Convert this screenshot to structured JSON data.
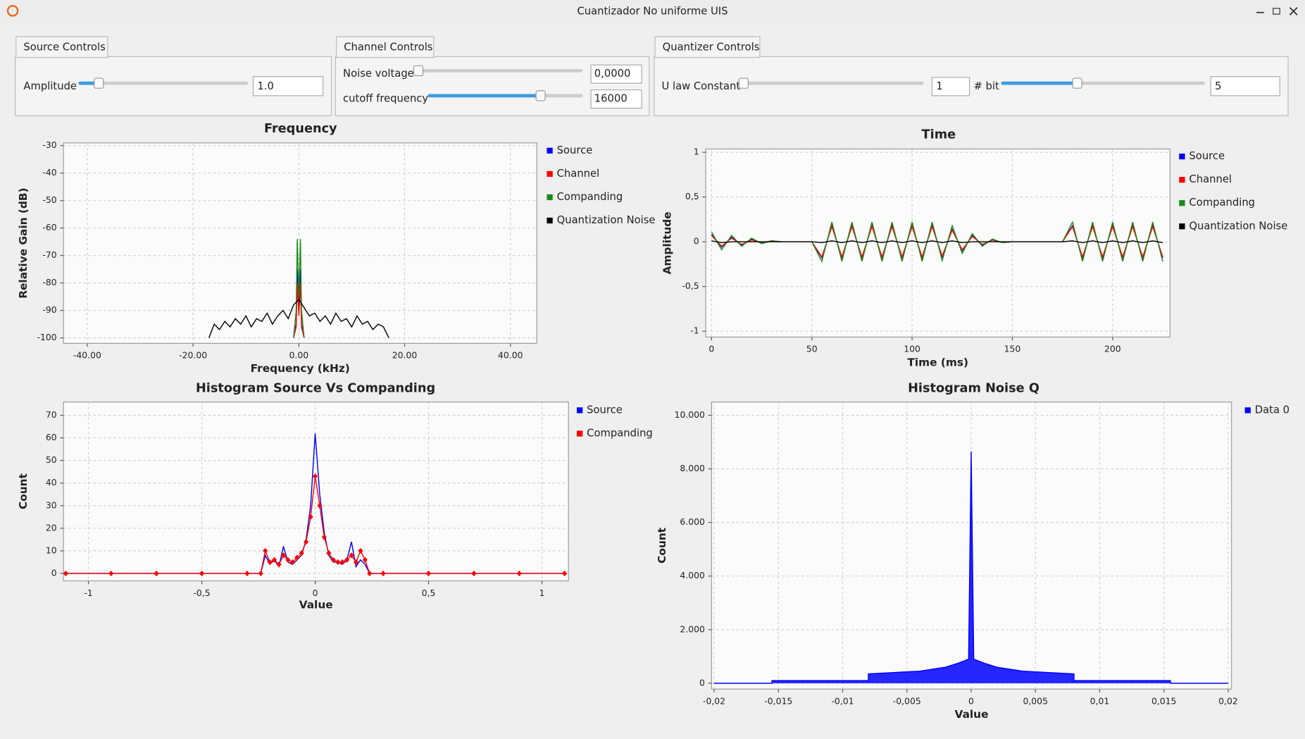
{
  "window": {
    "title": "Cuantizador No uniforme UIS"
  },
  "controls": [
    {
      "tab": "Source Controls",
      "fields": [
        {
          "label": "Amplitude",
          "value": "1.0"
        }
      ]
    },
    {
      "tab": "Channel Controls",
      "fields": [
        {
          "label": "Noise voltage",
          "value": "0,0000"
        },
        {
          "label": "cutoff frequency",
          "value": "16000"
        }
      ]
    },
    {
      "tab": "Quantizer Controls",
      "fields": [
        {
          "label": "U law Constant",
          "value": "1"
        },
        {
          "label": "# bit",
          "value": "5"
        }
      ]
    }
  ],
  "chart_data": [
    {
      "type": "line",
      "title": "Frequency",
      "x_label": "Frequency (kHz)",
      "y_label": "Relative Gain (dB)",
      "xlim": [
        -44.5,
        45
      ],
      "ylim": [
        -102,
        -29
      ],
      "xticks": [
        {
          "value": -40,
          "label": "-40.00"
        },
        {
          "value": -20,
          "label": "-20.00"
        },
        {
          "value": 0,
          "label": "0.00"
        },
        {
          "value": 20,
          "label": "20.00"
        },
        {
          "value": 40,
          "label": "40.00"
        }
      ],
      "yticks": [
        -30,
        -40,
        -50,
        -60,
        -70,
        -80,
        -90,
        -100
      ],
      "grid": true,
      "legend": "right",
      "series": [
        {
          "name": "Source",
          "color": "#0000ff",
          "x": [
            -1,
            -0.5,
            -0.3,
            0,
            0.3,
            0.5,
            1
          ],
          "values": [
            -100,
            -95,
            -75,
            -90,
            -75,
            -95,
            -100
          ]
        },
        {
          "name": "Channel",
          "color": "#ff0000",
          "x": [
            -1,
            -0.5,
            -0.3,
            0,
            0.3,
            0.5,
            1
          ],
          "values": [
            -100,
            -96,
            -80,
            -92,
            -80,
            -96,
            -100
          ]
        },
        {
          "name": "Companding",
          "color": "#1a8a1a",
          "x": [
            -1,
            -0.5,
            -0.3,
            0,
            0.3,
            0.5,
            1
          ],
          "values": [
            -100,
            -90,
            -64,
            -85,
            -64,
            -90,
            -100
          ]
        },
        {
          "name": "Quantization Noise",
          "color": "#000000",
          "x": [
            -17,
            -16,
            -15,
            -14,
            -13,
            -12,
            -11,
            -10,
            -9,
            -8,
            -7,
            -6,
            -5,
            -4,
            -3,
            -2,
            -1,
            0,
            1,
            2,
            3,
            4,
            5,
            6,
            7,
            8,
            9,
            10,
            11,
            12,
            13,
            14,
            15,
            16,
            17
          ],
          "values": [
            -100,
            -95,
            -97,
            -94,
            -96,
            -93,
            -95,
            -92,
            -96,
            -93,
            -94,
            -91,
            -95,
            -92,
            -90,
            -93,
            -88,
            -86,
            -89,
            -92,
            -91,
            -94,
            -92,
            -95,
            -91,
            -94,
            -93,
            -96,
            -92,
            -95,
            -94,
            -97,
            -95,
            -96,
            -100
          ]
        }
      ]
    },
    {
      "type": "line",
      "title": "Time",
      "x_label": "Time (ms)",
      "y_label": "Amplitude",
      "xlim": [
        -2.9,
        228.6
      ],
      "ylim": [
        -1.065,
        1.037
      ],
      "xticks": [
        0,
        50,
        100,
        150,
        200
      ],
      "yticks": [
        1,
        {
          "value": 0.5,
          "label": "0,5"
        },
        0,
        {
          "value": -0.5,
          "label": "-0,5"
        },
        -1
      ],
      "grid": true,
      "legend": "right",
      "x": [
        0,
        5,
        10,
        15,
        20,
        25,
        30,
        35,
        40,
        45,
        50,
        55,
        60,
        65,
        70,
        75,
        80,
        85,
        90,
        95,
        100,
        105,
        110,
        115,
        120,
        125,
        130,
        135,
        140,
        145,
        150,
        155,
        160,
        165,
        170,
        175,
        180,
        185,
        190,
        195,
        200,
        205,
        210,
        215,
        220,
        225
      ],
      "series": [
        {
          "name": "Source",
          "color": "#0000ff",
          "values": [
            0.08,
            -0.06,
            0.05,
            -0.04,
            0.03,
            -0.02,
            0.01,
            0,
            0,
            0,
            0,
            -0.18,
            0.18,
            -0.18,
            0.18,
            -0.18,
            0.18,
            -0.18,
            0.18,
            -0.18,
            0.18,
            -0.18,
            0.18,
            -0.17,
            0.14,
            -0.1,
            0.07,
            -0.04,
            0.02,
            -0.01,
            0,
            0,
            0,
            0,
            0,
            0,
            0.18,
            -0.18,
            0.18,
            -0.18,
            0.18,
            -0.18,
            0.18,
            -0.18,
            0.18,
            -0.18
          ]
        },
        {
          "name": "Channel",
          "color": "#ff0000",
          "values": [
            0.07,
            -0.05,
            0.04,
            -0.03,
            0.02,
            -0.01,
            0.01,
            0,
            0,
            0,
            0,
            -0.17,
            0.17,
            -0.17,
            0.17,
            -0.17,
            0.17,
            -0.17,
            0.17,
            -0.17,
            0.17,
            -0.17,
            0.17,
            -0.16,
            0.13,
            -0.09,
            0.06,
            -0.03,
            0.02,
            -0.01,
            0,
            0,
            0,
            0,
            0,
            0,
            0.17,
            -0.17,
            0.17,
            -0.17,
            0.17,
            -0.17,
            0.17,
            -0.17,
            0.17,
            -0.17
          ]
        },
        {
          "name": "Companding",
          "color": "#1a8a1a",
          "values": [
            0.11,
            -0.09,
            0.07,
            -0.05,
            0.04,
            -0.02,
            0.01,
            0,
            0,
            0,
            0,
            -0.22,
            0.22,
            -0.22,
            0.22,
            -0.22,
            0.22,
            -0.22,
            0.22,
            -0.22,
            0.22,
            -0.22,
            0.22,
            -0.21,
            0.18,
            -0.13,
            0.09,
            -0.05,
            0.03,
            -0.01,
            0,
            0,
            0,
            0,
            0,
            0,
            0.22,
            -0.22,
            0.22,
            -0.22,
            0.22,
            -0.22,
            0.22,
            -0.22,
            0.22,
            -0.22
          ]
        },
        {
          "name": "Quantization Noise",
          "color": "#000000",
          "values": [
            0.01,
            -0.01,
            0,
            0,
            0,
            0,
            0,
            0,
            0,
            0,
            0,
            -0.01,
            0.01,
            -0.01,
            0.01,
            -0.01,
            0.01,
            -0.01,
            0.01,
            -0.01,
            0.01,
            -0.01,
            0.01,
            -0.01,
            0.01,
            -0.01,
            0,
            0,
            0,
            0,
            0,
            0,
            0,
            0,
            0,
            0,
            0.01,
            -0.01,
            0.01,
            -0.01,
            0.01,
            -0.01,
            0.01,
            -0.01,
            0.01,
            -0.01
          ]
        }
      ]
    },
    {
      "type": "line",
      "title": "Histogram Source Vs Companding",
      "x_label": "Value",
      "y_label": "Count",
      "xlim": [
        -1.11,
        1.117
      ],
      "ylim": [
        -3.3,
        75.9
      ],
      "xticks": [
        -1,
        {
          "value": -0.5,
          "label": "-0,5"
        },
        0,
        {
          "value": 0.5,
          "label": "0,5"
        },
        1
      ],
      "yticks": [
        70,
        60,
        50,
        40,
        30,
        20,
        10,
        0
      ],
      "grid": true,
      "legend": "right",
      "x": [
        -1.1,
        -0.9,
        -0.7,
        -0.5,
        -0.3,
        -0.24,
        -0.22,
        -0.2,
        -0.18,
        -0.16,
        -0.14,
        -0.12,
        -0.1,
        -0.08,
        -0.06,
        -0.04,
        -0.02,
        0,
        0.02,
        0.04,
        0.06,
        0.08,
        0.1,
        0.12,
        0.14,
        0.16,
        0.18,
        0.2,
        0.22,
        0.24,
        0.3,
        0.5,
        0.7,
        0.9,
        1.1
      ],
      "series": [
        {
          "name": "Source",
          "color": "#0000ff",
          "values": [
            0,
            0,
            0,
            0,
            0,
            0,
            8,
            4,
            6,
            3,
            12,
            5,
            4,
            6,
            8,
            15,
            30,
            62,
            35,
            18,
            8,
            5,
            5,
            4,
            6,
            14,
            3,
            6,
            4,
            0,
            0,
            0,
            0,
            0,
            0
          ]
        },
        {
          "name": "Companding",
          "color": "#ff0000",
          "marker": "diamond",
          "values": [
            0,
            0,
            0,
            0,
            0,
            0,
            10,
            5,
            6,
            4,
            8,
            6,
            5,
            7,
            9,
            14,
            25,
            43,
            30,
            16,
            9,
            6,
            5,
            5,
            6,
            8,
            5,
            10,
            6,
            0,
            0,
            0,
            0,
            0,
            0
          ]
        }
      ]
    },
    {
      "type": "line",
      "title": "Histogram Noise Q",
      "x_label": "Value",
      "y_label": "Count",
      "xlim": [
        -0.0202,
        0.02026
      ],
      "ylim": [
        -217,
        10497
      ],
      "xticks": [
        {
          "value": -0.02,
          "label": "-0,02"
        },
        {
          "value": -0.015,
          "label": "-0,015"
        },
        {
          "value": -0.01,
          "label": "-0,01"
        },
        {
          "value": -0.005,
          "label": "-0,005"
        },
        0,
        {
          "value": 0.005,
          "label": "0,005"
        },
        {
          "value": 0.01,
          "label": "0,01"
        },
        {
          "value": 0.015,
          "label": "0,015"
        },
        {
          "value": 0.02,
          "label": "0,02"
        }
      ],
      "yticks": [
        {
          "value": 10000,
          "label": "10.000"
        },
        {
          "value": 8000,
          "label": "8.000"
        },
        {
          "value": 6000,
          "label": "6.000"
        },
        {
          "value": 4000,
          "label": "4.000"
        },
        {
          "value": 2000,
          "label": "2.000"
        },
        0
      ],
      "grid": true,
      "legend": "right",
      "x": [
        -0.02,
        -0.0155,
        -0.0155,
        -0.008,
        -0.008,
        -0.004,
        -0.002,
        -0.001,
        -0.0002,
        0,
        0.0002,
        0.001,
        0.002,
        0.004,
        0.008,
        0.008,
        0.0155,
        0.0155,
        0.02
      ],
      "series": [
        {
          "name": "Data 0",
          "color": "#0000ff",
          "fill": true,
          "values": [
            0,
            0,
            100,
            100,
            350,
            450,
            600,
            750,
            900,
            8650,
            900,
            750,
            600,
            450,
            350,
            100,
            100,
            0,
            0
          ]
        }
      ]
    }
  ]
}
